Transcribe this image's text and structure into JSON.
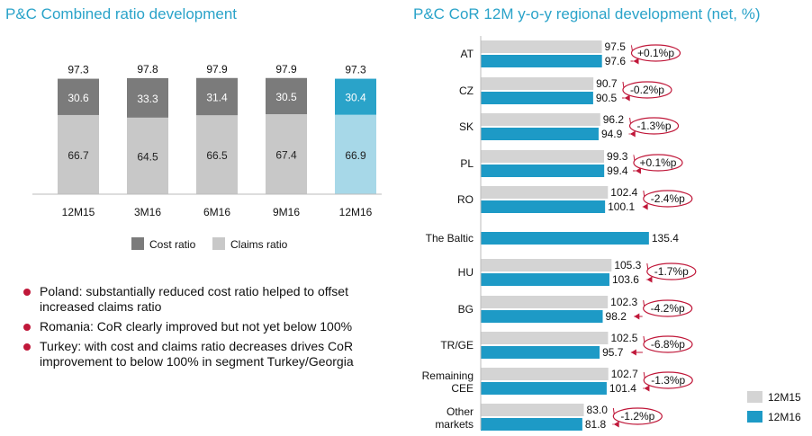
{
  "titles": {
    "left": "P&C Combined ratio development",
    "right": "P&C CoR 12M y-o-y regional development (net, %)"
  },
  "bullets": [
    "Poland: substantially reduced cost ratio helped to offset increased claims ratio",
    "Romania: CoR clearly improved but not yet below 100%",
    "Turkey: with cost and claims ratio decreases drives CoR improvement to below 100% in segment Turkey/Georgia"
  ],
  "colors": {
    "cost": "#7b7b7b",
    "claims": "#c8c8c8",
    "cost_highlight": "#2aa3c9",
    "claims_highlight": "#a7d8e8",
    "series_12M15": "#d4d4d4",
    "series_12M16": "#1d9ac6",
    "annotation": "#c0183a"
  },
  "chart_data": [
    {
      "type": "bar",
      "stacked": true,
      "categories": [
        "12M15",
        "3M16",
        "6M16",
        "9M16",
        "12M16"
      ],
      "series": [
        {
          "name": "Claims ratio",
          "values": [
            66.7,
            64.5,
            66.5,
            67.4,
            66.9
          ]
        },
        {
          "name": "Cost ratio",
          "values": [
            30.6,
            33.3,
            31.4,
            30.5,
            30.4
          ]
        }
      ],
      "totals": [
        97.3,
        97.8,
        97.9,
        97.9,
        97.3
      ],
      "highlight_index": 4,
      "legend_position": "bottom"
    },
    {
      "type": "bar",
      "orientation": "horizontal",
      "categories": [
        "AT",
        "CZ",
        "SK",
        "PL",
        "RO",
        "The Baltic",
        "HU",
        "BG",
        "TR/GE",
        "Remaining CEE",
        "Other markets"
      ],
      "series": [
        {
          "name": "12M15",
          "values": [
            97.5,
            90.7,
            96.2,
            99.3,
            102.4,
            null,
            105.3,
            102.3,
            102.5,
            102.7,
            83.0
          ]
        },
        {
          "name": "12M16",
          "values": [
            97.6,
            90.5,
            94.9,
            99.4,
            100.1,
            135.4,
            103.6,
            98.2,
            95.7,
            101.4,
            81.8
          ]
        }
      ],
      "value_labels": {
        "12M15": [
          "97.5",
          "90.7",
          "96.2",
          "99.3",
          "102.4",
          "",
          "105.3",
          "102.3",
          "102.5",
          "102.7",
          "83.0"
        ],
        "12M16": [
          "97.6",
          "90.5",
          "94.9",
          "99.4",
          "100.1",
          "135.4",
          "103.6",
          "98.2",
          "95.7",
          "101.4",
          "81.8"
        ]
      },
      "annotations": [
        "+0.1%p",
        "-0.2%p",
        "-1.3%p",
        "+0.1%p",
        "-2.4%p",
        "",
        "-1.7%p",
        "-4.2%p",
        "-6.8%p",
        "-1.3%p",
        "-1.2%p"
      ],
      "legend_position": "bottom-right"
    }
  ]
}
